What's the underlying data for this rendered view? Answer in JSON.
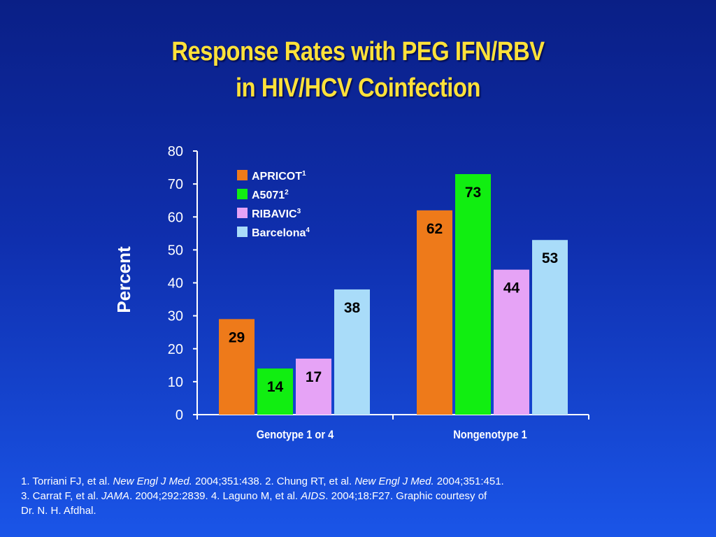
{
  "title_lines": [
    "Response Rates with PEG IFN/RBV",
    "in HIV/HCV Coinfection"
  ],
  "chart_data": {
    "type": "bar",
    "categories": [
      "Genotype 1 or 4",
      "Nongenotype 1"
    ],
    "series": [
      {
        "name": "APRICOT",
        "sup": "1",
        "color": "#ee7a1a",
        "values": [
          29,
          62
        ]
      },
      {
        "name": "A5071",
        "sup": "2",
        "color": "#11ee11",
        "values": [
          14,
          73
        ]
      },
      {
        "name": "RIBAVIC",
        "sup": "3",
        "color": "#e6a3f6",
        "values": [
          17,
          44
        ]
      },
      {
        "name": "Barcelona",
        "sup": "4",
        "color": "#a9dcf9",
        "values": [
          38,
          53
        ]
      }
    ],
    "ylabel": "Percent",
    "xlabel": "",
    "ylim": [
      0,
      80
    ],
    "yticks": [
      0,
      10,
      20,
      30,
      40,
      50,
      60,
      70,
      80
    ],
    "legend": "top-left",
    "grid": false
  },
  "references": [
    [
      {
        "t": "1. Torriani FJ, et al. "
      },
      {
        "t": "New Engl J Med.",
        "i": true
      },
      {
        "t": " 2004;351:438. 2. Chung RT, et al. "
      },
      {
        "t": "New Engl J Med.",
        "i": true
      },
      {
        "t": " 2004;351:451."
      }
    ],
    [
      {
        "t": "3. Carrat F, et al. "
      },
      {
        "t": "JAMA",
        "i": true
      },
      {
        "t": ". 2004;292:2839. 4. Laguno M, et al. "
      },
      {
        "t": "AIDS",
        "i": true
      },
      {
        "t": ". 2004;18:F27. Graphic courtesy of"
      }
    ],
    [
      {
        "t": "Dr. N. H. Afdhal."
      }
    ]
  ]
}
